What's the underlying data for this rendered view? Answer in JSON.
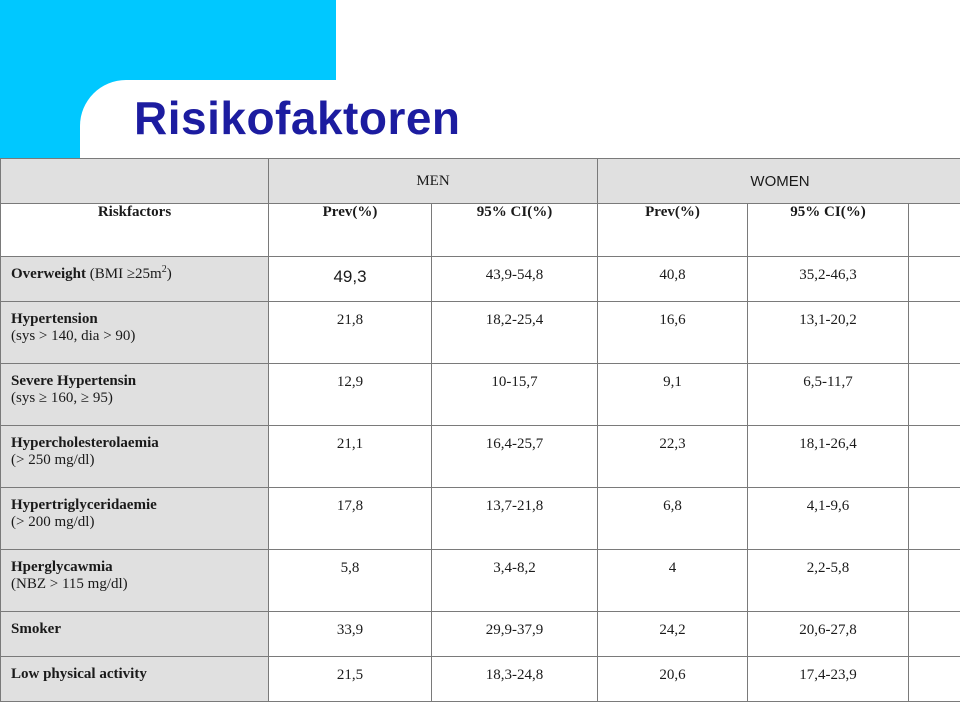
{
  "slide": {
    "title": "Risikofaktoren"
  },
  "colors": {
    "accent_cyan": "#00c8ff",
    "title_blue": "#1c1ca0",
    "header_gray": "#e0e0e0"
  },
  "table": {
    "group_headers": {
      "men": "MEN",
      "women": "WOMEN"
    },
    "column_headers": [
      "Riskfactors",
      "Prev(%)",
      "95% CI(%)",
      "Prev(%)",
      "95% CI(%)"
    ],
    "rows": [
      {
        "label": "Overweight",
        "sub": " (BMI ≥25m",
        "sub_sup": "2",
        "sub_end": ")",
        "men_prev": "49,3",
        "men_ci": "43,9-54,8",
        "women_prev": "40,8",
        "women_ci": "35,2-46,3"
      },
      {
        "label": "Hypertension",
        "sub": "(sys > 140, dia > 90)",
        "men_prev": "21,8",
        "men_ci": "18,2-25,4",
        "women_prev": "16,6",
        "women_ci": "13,1-20,2"
      },
      {
        "label": "Severe Hypertensin",
        "sub": "(sys ≥ 160, ≥ 95)",
        "men_prev": "12,9",
        "men_ci": "10-15,7",
        "women_prev": "9,1",
        "women_ci": "6,5-11,7"
      },
      {
        "label": "Hypercholesterolaemia",
        "sub": "(> 250 mg/dl)",
        "men_prev": "21,1",
        "men_ci": "16,4-25,7",
        "women_prev": "22,3",
        "women_ci": "18,1-26,4"
      },
      {
        "label": "Hypertriglyceridaemie",
        "sub": "(> 200 mg/dl)",
        "men_prev": "17,8",
        "men_ci": "13,7-21,8",
        "women_prev": "6,8",
        "women_ci": "4,1-9,6"
      },
      {
        "label": "Hperglycawmia",
        "sub": "(NBZ > 115 mg/dl)",
        "men_prev": "5,8",
        "men_ci": "3,4-8,2",
        "women_prev": "4",
        "women_ci": "2,2-5,8"
      },
      {
        "label": "Smoker",
        "men_prev": "33,9",
        "men_ci": "29,9-37,9",
        "women_prev": "24,2",
        "women_ci": "20,6-27,8"
      },
      {
        "label": "Low physical activity",
        "men_prev": "21,5",
        "men_ci": "18,3-24,8",
        "women_prev": "20,6",
        "women_ci": "17,4-23,9"
      }
    ]
  }
}
